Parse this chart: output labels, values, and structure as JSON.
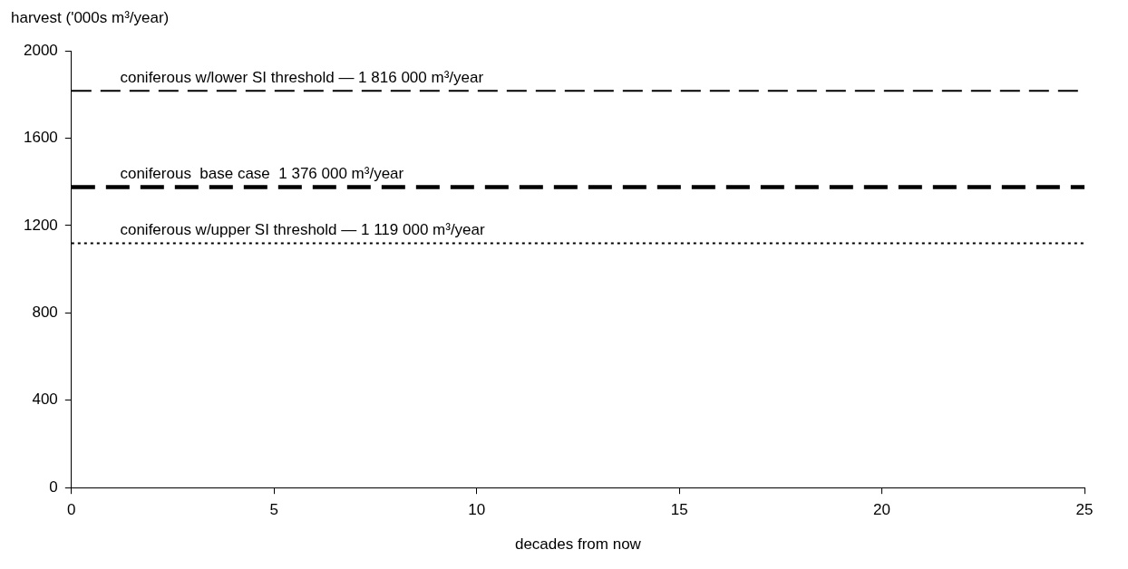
{
  "chart_data": {
    "type": "line",
    "xlabel": "decades from now",
    "ylabel": "harvest ('000s m³/year)",
    "xlim": [
      0,
      25
    ],
    "xticks": [
      0,
      5,
      10,
      15,
      20,
      25
    ],
    "ylim": [
      0,
      2000
    ],
    "yticks": [
      0,
      400,
      800,
      1200,
      1600,
      2000
    ],
    "legend": false,
    "ref_lines": [
      {
        "axis": "y",
        "value": 1816,
        "label": "coniferous w/lower SI threshold — 1 816 000 m³/year",
        "color": "#000000",
        "line_style": "dashed"
      },
      {
        "axis": "y",
        "value": 1376,
        "label": "coniferous  base case  1 376 000 m³/year",
        "color": "#000000",
        "line_style": "dashed"
      },
      {
        "axis": "y",
        "value": 1119,
        "label": "coniferous w/upper SI threshold — 1 119 000 m³/year",
        "color": "#000000",
        "line_style": "dotted"
      }
    ]
  }
}
